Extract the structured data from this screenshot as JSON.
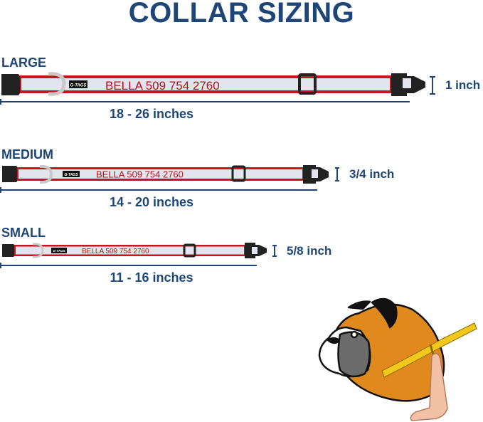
{
  "title": "COLLAR SIZING",
  "brand_tag": "G-TAGS",
  "colors": {
    "navy": "#1d4677",
    "strap_red": "#c8141e",
    "strap_fill": "#e3e5ee",
    "buckle": "#222222"
  },
  "sizes": [
    {
      "label": "LARGE",
      "engraving": "BELLA 509 754 2760",
      "length": "18 - 26 inches",
      "width": "1 inch"
    },
    {
      "label": "MEDIUM",
      "engraving": "BELLA 509 754 2760",
      "length": "14 - 20 inches",
      "width": "3/4 inch"
    },
    {
      "label": "SMALL",
      "engraving": "BELLA 509 754 2760",
      "length": "11 - 16 inches",
      "width": "5/8 inch"
    }
  ],
  "illustration": "boxer-dog-measuring-tape"
}
